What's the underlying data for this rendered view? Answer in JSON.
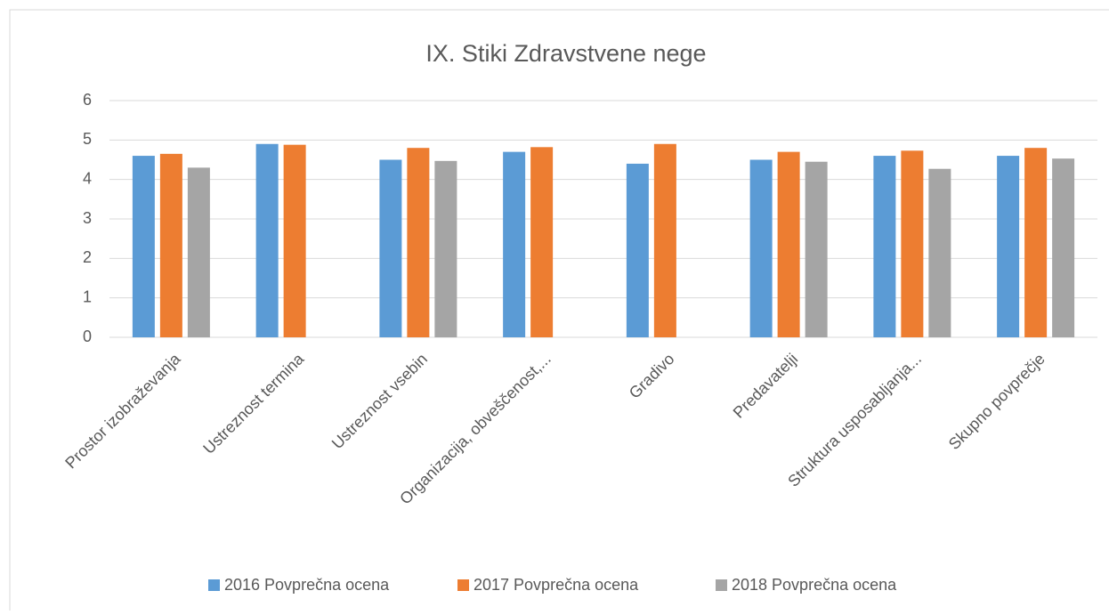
{
  "chart_data": {
    "type": "bar",
    "title": "IX. Stiki Zdravstvene nege",
    "categories": [
      "Prostor izobraževanja",
      "Ustreznost termina",
      "Ustreznost vsebin",
      "Organizacija, obveščenost,...",
      "Gradivo",
      "Predavatelji",
      "Struktura usposabljanja...",
      "Skupno povprečje"
    ],
    "series": [
      {
        "name": "2016 Povprečna ocena",
        "color": "#5b9bd5",
        "values": [
          4.6,
          4.9,
          4.5,
          4.7,
          4.4,
          4.5,
          4.6,
          4.6
        ]
      },
      {
        "name": "2017 Povprečna ocena",
        "color": "#ed7d31",
        "values": [
          4.65,
          4.88,
          4.8,
          4.82,
          4.9,
          4.7,
          4.73,
          4.8
        ]
      },
      {
        "name": "2018 Povprečna ocena",
        "color": "#a5a5a5",
        "values": [
          4.3,
          null,
          4.47,
          null,
          null,
          4.45,
          4.27,
          4.53
        ]
      }
    ],
    "ylim": [
      0,
      6
    ],
    "yticks": [
      0,
      1,
      2,
      3,
      4,
      5,
      6
    ],
    "grid": true,
    "legend": "bottom"
  }
}
